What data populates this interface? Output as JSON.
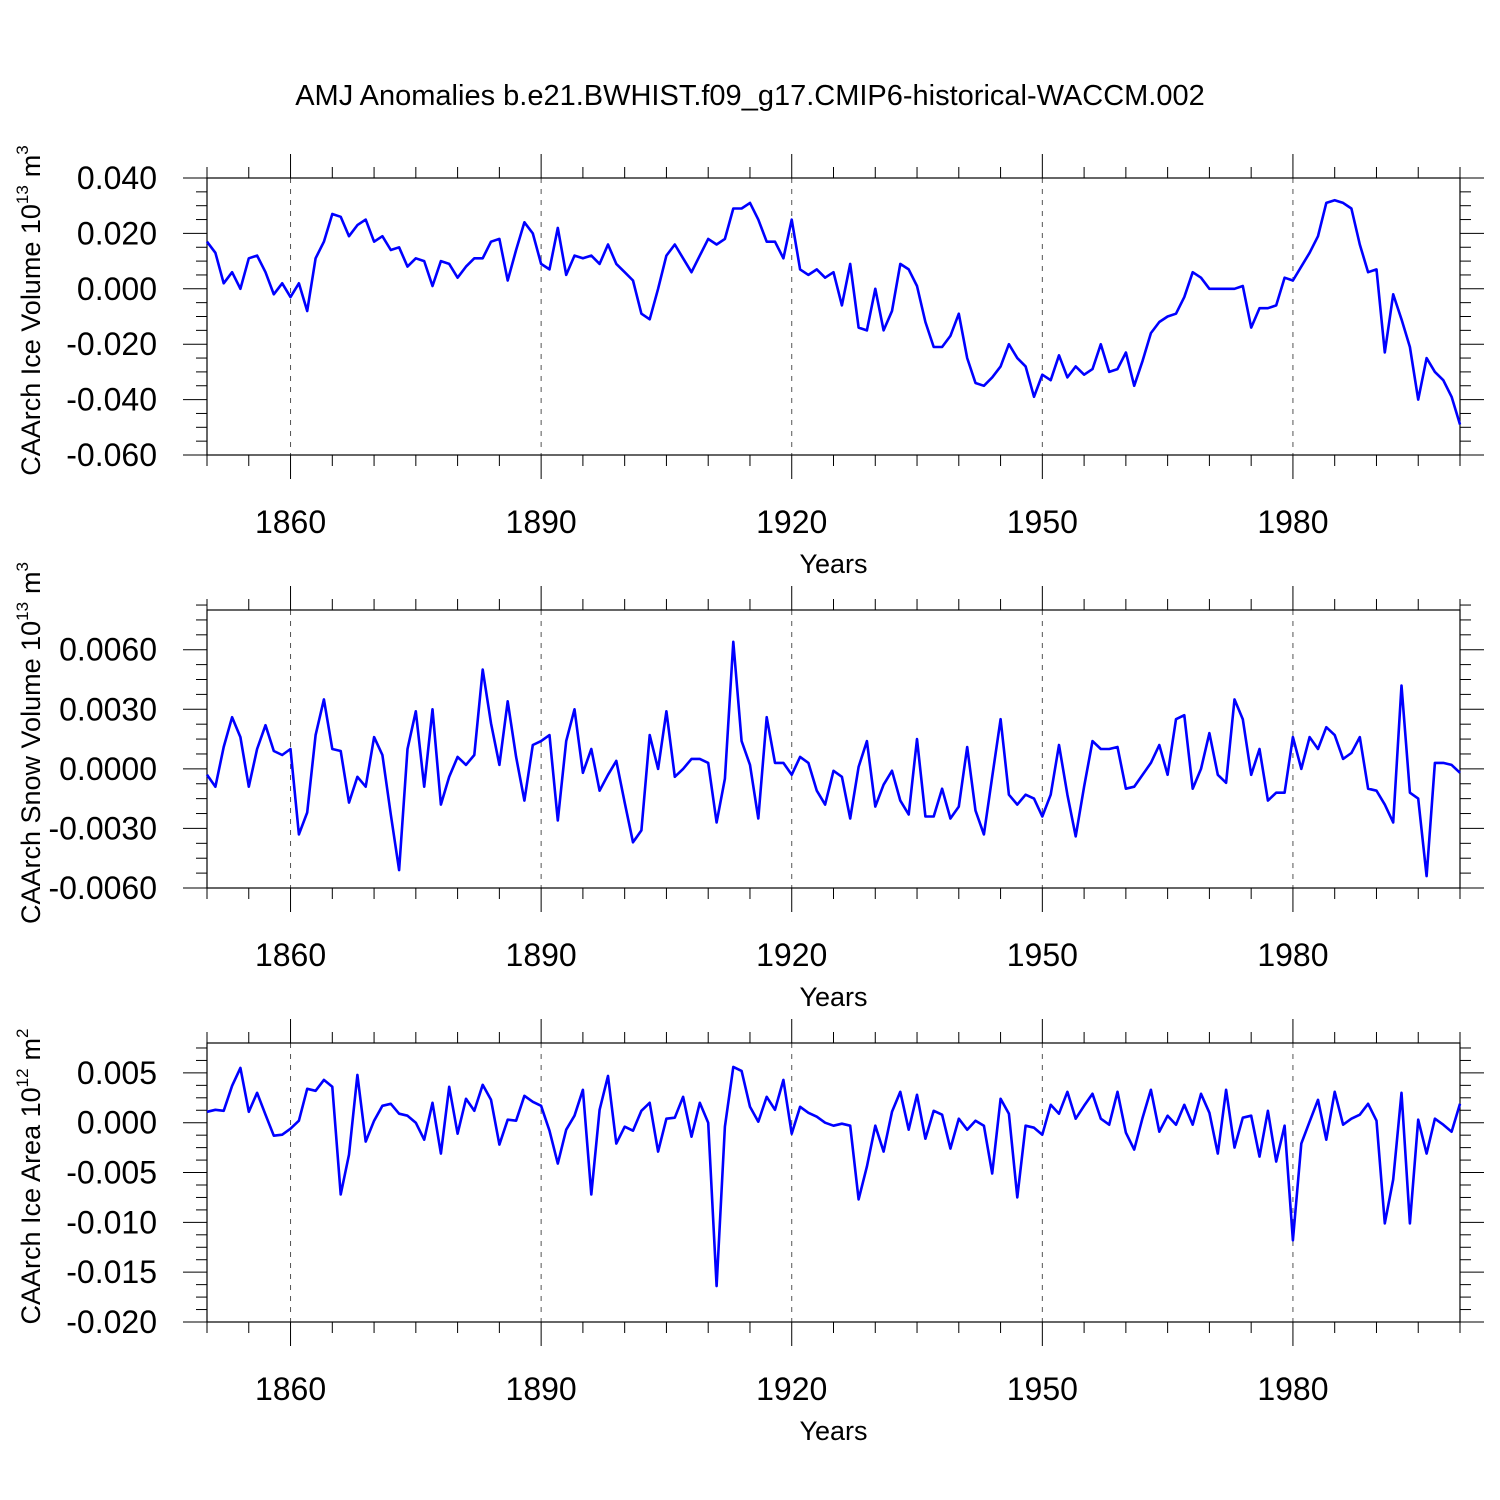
{
  "title": "AMJ Anomalies b.e21.BWHIST.f09_g17.CMIP6-historical-WACCM.002",
  "colors": {
    "series": "#0000ff",
    "axis": "#000000",
    "grid": "#555555"
  },
  "chart_data": [
    {
      "type": "line",
      "ylabel": "CAArch Ice Volume 10",
      "ylabel_sup": "13",
      "ylabel_unit": "m",
      "ylabel_unit_sup": "3",
      "xlabel": "Years",
      "xlim": [
        1850,
        2000
      ],
      "ylim": [
        -0.06,
        0.04
      ],
      "xticks": [
        1860,
        1890,
        1920,
        1950,
        1980
      ],
      "xtick_labels": [
        "1860",
        "1890",
        "1920",
        "1950",
        "1980"
      ],
      "yticks": [
        -0.06,
        -0.04,
        -0.02,
        0.0,
        0.02,
        0.04
      ],
      "ytick_labels": [
        "-0.060",
        "-0.040",
        "-0.020",
        "0.000",
        "0.020",
        "0.040"
      ],
      "grid_x": true,
      "x": [
        1850,
        1851,
        1852,
        1853,
        1854,
        1855,
        1856,
        1857,
        1858,
        1859,
        1860,
        1861,
        1862,
        1863,
        1864,
        1865,
        1866,
        1867,
        1868,
        1869,
        1870,
        1871,
        1872,
        1873,
        1874,
        1875,
        1876,
        1877,
        1878,
        1879,
        1880,
        1881,
        1882,
        1883,
        1884,
        1885,
        1886,
        1887,
        1888,
        1889,
        1890,
        1891,
        1892,
        1893,
        1894,
        1895,
        1896,
        1897,
        1898,
        1899,
        1900,
        1901,
        1902,
        1903,
        1904,
        1905,
        1906,
        1907,
        1908,
        1909,
        1910,
        1911,
        1912,
        1913,
        1914,
        1915,
        1916,
        1917,
        1918,
        1919,
        1920,
        1921,
        1922,
        1923,
        1924,
        1925,
        1926,
        1927,
        1928,
        1929,
        1930,
        1931,
        1932,
        1933,
        1934,
        1935,
        1936,
        1937,
        1938,
        1939,
        1940,
        1941,
        1942,
        1943,
        1944,
        1945,
        1946,
        1947,
        1948,
        1949,
        1950,
        1951,
        1952,
        1953,
        1954,
        1955,
        1956,
        1957,
        1958,
        1959,
        1960,
        1961,
        1962,
        1963,
        1964,
        1965,
        1966,
        1967,
        1968,
        1969,
        1970,
        1971,
        1972,
        1973,
        1974,
        1975,
        1976,
        1977,
        1978,
        1979,
        1980,
        1981,
        1982,
        1983,
        1984,
        1985,
        1986,
        1987,
        1988,
        1989,
        1990,
        1991,
        1992,
        1993,
        1994,
        1995,
        1996,
        1997,
        1998,
        1999,
        2000
      ],
      "values": [
        0.017,
        0.013,
        0.002,
        0.006,
        0.0,
        0.011,
        0.012,
        0.006,
        -0.002,
        0.002,
        -0.003,
        0.002,
        -0.008,
        0.011,
        0.017,
        0.027,
        0.026,
        0.019,
        0.023,
        0.025,
        0.017,
        0.019,
        0.014,
        0.015,
        0.008,
        0.011,
        0.01,
        0.001,
        0.01,
        0.009,
        0.004,
        0.008,
        0.011,
        0.011,
        0.017,
        0.018,
        0.003,
        0.014,
        0.024,
        0.02,
        0.009,
        0.007,
        0.022,
        0.005,
        0.012,
        0.011,
        0.012,
        0.009,
        0.016,
        0.009,
        0.006,
        0.003,
        -0.009,
        -0.011,
        0.0,
        0.012,
        0.016,
        0.011,
        0.006,
        0.012,
        0.018,
        0.016,
        0.018,
        0.029,
        0.029,
        0.031,
        0.025,
        0.017,
        0.017,
        0.011,
        0.025,
        0.007,
        0.005,
        0.007,
        0.004,
        0.006,
        -0.006,
        0.009,
        -0.014,
        -0.015,
        0.0,
        -0.015,
        -0.008,
        0.009,
        0.007,
        0.001,
        -0.012,
        -0.021,
        -0.021,
        -0.017,
        -0.009,
        -0.025,
        -0.034,
        -0.035,
        -0.032,
        -0.028,
        -0.02,
        -0.025,
        -0.028,
        -0.039,
        -0.031,
        -0.033,
        -0.024,
        -0.032,
        -0.028,
        -0.031,
        -0.029,
        -0.02,
        -0.03,
        -0.029,
        -0.023,
        -0.035,
        -0.026,
        -0.016,
        -0.012,
        -0.01,
        -0.009,
        -0.003,
        0.006,
        0.004,
        0.0,
        0.0,
        0.0,
        0.0,
        0.001,
        -0.014,
        -0.007,
        -0.007,
        -0.006,
        0.004,
        0.003,
        0.008,
        0.013,
        0.019,
        0.031,
        0.032,
        0.031,
        0.029,
        0.016,
        0.006,
        0.007,
        -0.023,
        -0.002,
        -0.011,
        -0.021,
        -0.04,
        -0.025,
        -0.03,
        -0.033,
        -0.039,
        -0.049
      ]
    },
    {
      "type": "line",
      "ylabel": "CAArch Snow Volume 10",
      "ylabel_sup": "13",
      "ylabel_unit": "m",
      "ylabel_unit_sup": "3",
      "xlabel": "Years",
      "xlim": [
        1850,
        2000
      ],
      "ylim": [
        -0.006,
        0.008
      ],
      "xticks": [
        1860,
        1890,
        1920,
        1950,
        1980
      ],
      "xtick_labels": [
        "1860",
        "1890",
        "1920",
        "1950",
        "1980"
      ],
      "yticks": [
        -0.006,
        -0.003,
        0.0,
        0.003,
        0.006
      ],
      "ytick_labels": [
        "-0.0060",
        "-0.0030",
        "0.0000",
        "0.0030",
        "0.0060"
      ],
      "grid_x": true,
      "x": [
        1850,
        1851,
        1852,
        1853,
        1854,
        1855,
        1856,
        1857,
        1858,
        1859,
        1860,
        1861,
        1862,
        1863,
        1864,
        1865,
        1866,
        1867,
        1868,
        1869,
        1870,
        1871,
        1872,
        1873,
        1874,
        1875,
        1876,
        1877,
        1878,
        1879,
        1880,
        1881,
        1882,
        1883,
        1884,
        1885,
        1886,
        1887,
        1888,
        1889,
        1890,
        1891,
        1892,
        1893,
        1894,
        1895,
        1896,
        1897,
        1898,
        1899,
        1900,
        1901,
        1902,
        1903,
        1904,
        1905,
        1906,
        1907,
        1908,
        1909,
        1910,
        1911,
        1912,
        1913,
        1914,
        1915,
        1916,
        1917,
        1918,
        1919,
        1920,
        1921,
        1922,
        1923,
        1924,
        1925,
        1926,
        1927,
        1928,
        1929,
        1930,
        1931,
        1932,
        1933,
        1934,
        1935,
        1936,
        1937,
        1938,
        1939,
        1940,
        1941,
        1942,
        1943,
        1944,
        1945,
        1946,
        1947,
        1948,
        1949,
        1950,
        1951,
        1952,
        1953,
        1954,
        1955,
        1956,
        1957,
        1958,
        1959,
        1960,
        1961,
        1962,
        1963,
        1964,
        1965,
        1966,
        1967,
        1968,
        1969,
        1970,
        1971,
        1972,
        1973,
        1974,
        1975,
        1976,
        1977,
        1978,
        1979,
        1980,
        1981,
        1982,
        1983,
        1984,
        1985,
        1986,
        1987,
        1988,
        1989,
        1990,
        1991,
        1992,
        1993,
        1994,
        1995,
        1996,
        1997,
        1998,
        1999,
        2000
      ],
      "values": [
        -0.0003,
        -0.0009,
        0.0011,
        0.0026,
        0.0016,
        -0.0009,
        0.001,
        0.0022,
        0.0009,
        0.0007,
        0.001,
        -0.0033,
        -0.0022,
        0.0017,
        0.0035,
        0.001,
        0.0009,
        -0.0017,
        -0.0004,
        -0.0009,
        0.0016,
        0.0007,
        -0.0023,
        -0.0051,
        0.001,
        0.0029,
        -0.0009,
        0.003,
        -0.0018,
        -0.0004,
        0.0006,
        0.0002,
        0.0007,
        0.005,
        0.0023,
        0.0002,
        0.0034,
        0.0006,
        -0.0016,
        0.0012,
        0.0014,
        0.0017,
        -0.0026,
        0.0014,
        0.003,
        -0.0002,
        0.001,
        -0.0011,
        -0.0003,
        0.0004,
        -0.0017,
        -0.0037,
        -0.0031,
        0.0017,
        0.0,
        0.0029,
        -0.0004,
        0.0,
        0.0005,
        0.0005,
        0.0003,
        -0.0027,
        -0.0005,
        0.0064,
        0.0014,
        0.0002,
        -0.0025,
        0.0026,
        0.0003,
        0.0003,
        -0.0003,
        0.0006,
        0.0003,
        -0.0011,
        -0.0018,
        -0.0001,
        -0.0004,
        -0.0025,
        0.0001,
        0.0014,
        -0.0019,
        -0.0008,
        -0.0001,
        -0.0016,
        -0.0023,
        0.0015,
        -0.0024,
        -0.0024,
        -0.001,
        -0.0025,
        -0.0019,
        0.0011,
        -0.0021,
        -0.0033,
        -0.0004,
        0.0025,
        -0.0013,
        -0.0018,
        -0.0013,
        -0.0015,
        -0.0024,
        -0.0013,
        0.0012,
        -0.0013,
        -0.0034,
        -0.0009,
        0.0014,
        0.001,
        0.001,
        0.0011,
        -0.001,
        -0.0009,
        -0.0003,
        0.0003,
        0.0012,
        -0.0003,
        0.0025,
        0.0027,
        -0.001,
        0.0,
        0.0018,
        -0.0003,
        -0.0007,
        0.0035,
        0.0025,
        -0.0003,
        0.001,
        -0.0016,
        -0.0012,
        -0.0012,
        0.0016,
        0.0,
        0.0016,
        0.001,
        0.0021,
        0.0017,
        0.0005,
        0.0008,
        0.0016,
        -0.001,
        -0.0011,
        -0.0018,
        -0.0027,
        0.0042,
        -0.0012,
        -0.0015,
        -0.0054,
        0.0003,
        0.0003,
        0.0002,
        -0.0002
      ]
    },
    {
      "type": "line",
      "ylabel": "CAArch Ice Area 10",
      "ylabel_sup": "12",
      "ylabel_unit": "m",
      "ylabel_unit_sup": "2",
      "xlabel": "Years",
      "xlim": [
        1850,
        2000
      ],
      "ylim": [
        -0.02,
        0.008
      ],
      "xticks": [
        1860,
        1890,
        1920,
        1950,
        1980
      ],
      "xtick_labels": [
        "1860",
        "1890",
        "1920",
        "1950",
        "1980"
      ],
      "yticks": [
        -0.02,
        -0.015,
        -0.01,
        -0.005,
        0.0,
        0.005
      ],
      "ytick_labels": [
        "-0.020",
        "-0.015",
        "-0.010",
        "-0.005",
        "0.000",
        "0.005"
      ],
      "grid_x": true,
      "x": [
        1850,
        1851,
        1852,
        1853,
        1854,
        1855,
        1856,
        1857,
        1858,
        1859,
        1860,
        1861,
        1862,
        1863,
        1864,
        1865,
        1866,
        1867,
        1868,
        1869,
        1870,
        1871,
        1872,
        1873,
        1874,
        1875,
        1876,
        1877,
        1878,
        1879,
        1880,
        1881,
        1882,
        1883,
        1884,
        1885,
        1886,
        1887,
        1888,
        1889,
        1890,
        1891,
        1892,
        1893,
        1894,
        1895,
        1896,
        1897,
        1898,
        1899,
        1900,
        1901,
        1902,
        1903,
        1904,
        1905,
        1906,
        1907,
        1908,
        1909,
        1910,
        1911,
        1912,
        1913,
        1914,
        1915,
        1916,
        1917,
        1918,
        1919,
        1920,
        1921,
        1922,
        1923,
        1924,
        1925,
        1926,
        1927,
        1928,
        1929,
        1930,
        1931,
        1932,
        1933,
        1934,
        1935,
        1936,
        1937,
        1938,
        1939,
        1940,
        1941,
        1942,
        1943,
        1944,
        1945,
        1946,
        1947,
        1948,
        1949,
        1950,
        1951,
        1952,
        1953,
        1954,
        1955,
        1956,
        1957,
        1958,
        1959,
        1960,
        1961,
        1962,
        1963,
        1964,
        1965,
        1966,
        1967,
        1968,
        1969,
        1970,
        1971,
        1972,
        1973,
        1974,
        1975,
        1976,
        1977,
        1978,
        1979,
        1980,
        1981,
        1982,
        1983,
        1984,
        1985,
        1986,
        1987,
        1988,
        1989,
        1990,
        1991,
        1992,
        1993,
        1994,
        1995,
        1996,
        1997,
        1998,
        1999,
        2000
      ],
      "values": [
        0.0011,
        0.0013,
        0.0012,
        0.0037,
        0.0055,
        0.0011,
        0.003,
        0.0008,
        -0.0013,
        -0.0012,
        -0.0006,
        0.0002,
        0.0034,
        0.0032,
        0.0043,
        0.0036,
        -0.0072,
        -0.0032,
        0.0048,
        -0.0019,
        0.0002,
        0.0017,
        0.0019,
        0.0009,
        0.0007,
        0.0,
        -0.0017,
        0.002,
        -0.0031,
        0.0036,
        -0.0011,
        0.0024,
        0.0012,
        0.0038,
        0.0023,
        -0.0022,
        0.0003,
        0.0002,
        0.0027,
        0.0021,
        0.0017,
        -0.0008,
        -0.0041,
        -0.0007,
        0.0007,
        0.0033,
        -0.0072,
        0.0013,
        0.0047,
        -0.0021,
        -0.0004,
        -0.0008,
        0.0012,
        0.002,
        -0.0029,
        0.0004,
        0.0005,
        0.0026,
        -0.0014,
        0.002,
        0.0,
        -0.0164,
        -0.0004,
        0.0056,
        0.0052,
        0.0016,
        0.0001,
        0.0026,
        0.0013,
        0.0043,
        -0.0011,
        0.0016,
        0.001,
        0.0006,
        0.0,
        -0.0003,
        -0.0001,
        -0.0003,
        -0.0077,
        -0.0044,
        -0.0003,
        -0.0029,
        0.0011,
        0.0031,
        -0.0007,
        0.0028,
        -0.0016,
        0.0012,
        0.0008,
        -0.0026,
        0.0004,
        -0.0007,
        0.0002,
        -0.0003,
        -0.0051,
        0.0024,
        0.0009,
        -0.0075,
        -0.0003,
        -0.0005,
        -0.0012,
        0.0018,
        0.0009,
        0.0031,
        0.0004,
        0.0017,
        0.0029,
        0.0004,
        -0.0002,
        0.0031,
        -0.001,
        -0.0027,
        0.0005,
        0.0033,
        -0.0009,
        0.0007,
        -0.0002,
        0.0018,
        -0.0002,
        0.0029,
        0.001,
        -0.0031,
        0.0033,
        -0.0025,
        0.0005,
        0.0007,
        -0.0034,
        0.0012,
        -0.0039,
        -0.0003,
        -0.0118,
        -0.0021,
        0.0001,
        0.0023,
        -0.0017,
        0.0031,
        -0.0002,
        0.0004,
        0.0008,
        0.0019,
        0.0002,
        -0.0101,
        -0.0057,
        0.003,
        -0.0101,
        0.0003,
        -0.0031,
        0.0004,
        -0.0002,
        -0.0009,
        0.0019
      ]
    }
  ]
}
